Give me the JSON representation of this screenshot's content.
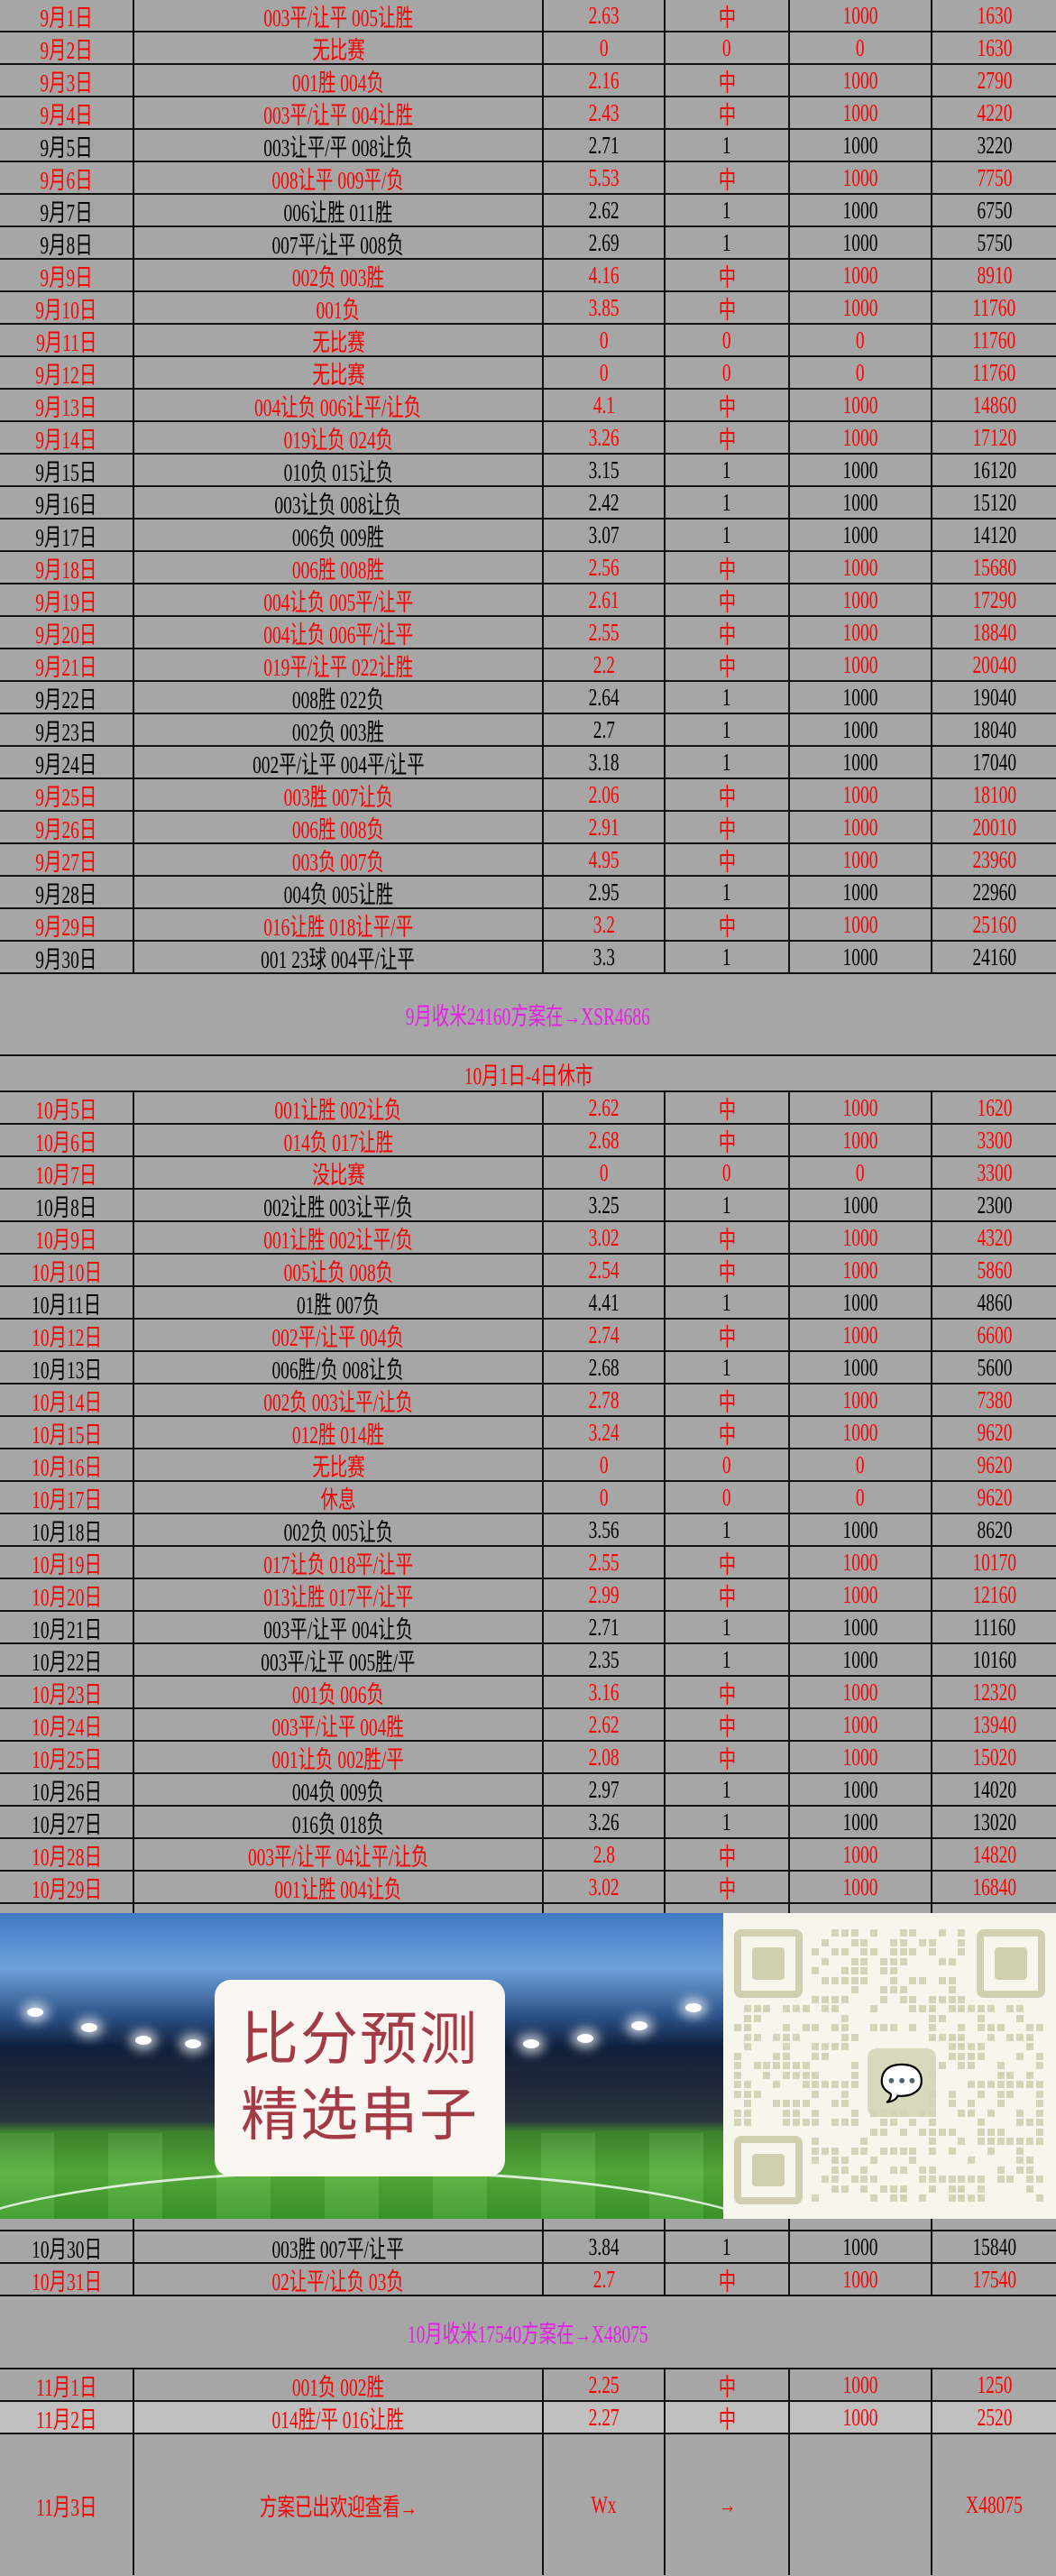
{
  "colors": {
    "red": "#ff0000",
    "black": "#000000",
    "magenta": "#e81ee8",
    "background": "#a6a6a6",
    "highlight_row": "#c0c0c0"
  },
  "september": [
    {
      "date": "9月1日",
      "picks": "003平/让平 005让胜",
      "odds": "2.63",
      "result": "中",
      "stake": "1000",
      "balance": "1630",
      "color": "red"
    },
    {
      "date": "9月2日",
      "picks": "无比赛",
      "odds": "0",
      "result": "0",
      "stake": "0",
      "balance": "1630",
      "color": "red"
    },
    {
      "date": "9月3日",
      "picks": "001胜 004负",
      "odds": "2.16",
      "result": "中",
      "stake": "1000",
      "balance": "2790",
      "color": "red"
    },
    {
      "date": "9月4日",
      "picks": "003平/让平 004让胜",
      "odds": "2.43",
      "result": "中",
      "stake": "1000",
      "balance": "4220",
      "color": "red"
    },
    {
      "date": "9月5日",
      "picks": "003让平/平 008让负",
      "odds": "2.71",
      "result": "1",
      "stake": "1000",
      "balance": "3220",
      "color": "black"
    },
    {
      "date": "9月6日",
      "picks": "008让平 009平/负",
      "odds": "5.53",
      "result": "中",
      "stake": "1000",
      "balance": "7750",
      "color": "red"
    },
    {
      "date": "9月7日",
      "picks": "006让胜 011胜",
      "odds": "2.62",
      "result": "1",
      "stake": "1000",
      "balance": "6750",
      "color": "black"
    },
    {
      "date": "9月8日",
      "picks": "007平/让平 008负",
      "odds": "2.69",
      "result": "1",
      "stake": "1000",
      "balance": "5750",
      "color": "black"
    },
    {
      "date": "9月9日",
      "picks": "002负 003胜",
      "odds": "4.16",
      "result": "中",
      "stake": "1000",
      "balance": "8910",
      "color": "red"
    },
    {
      "date": "9月10日",
      "picks": "001负",
      "odds": "3.85",
      "result": "中",
      "stake": "1000",
      "balance": "11760",
      "color": "red"
    },
    {
      "date": "9月11日",
      "picks": "无比赛",
      "odds": "0",
      "result": "0",
      "stake": "0",
      "balance": "11760",
      "color": "red"
    },
    {
      "date": "9月12日",
      "picks": "无比赛",
      "odds": "0",
      "result": "0",
      "stake": "0",
      "balance": "11760",
      "color": "red"
    },
    {
      "date": "9月13日",
      "picks": "004让负 006让平/让负",
      "odds": "4.1",
      "result": "中",
      "stake": "1000",
      "balance": "14860",
      "color": "red"
    },
    {
      "date": "9月14日",
      "picks": "019让负 024负",
      "odds": "3.26",
      "result": "中",
      "stake": "1000",
      "balance": "17120",
      "color": "red"
    },
    {
      "date": "9月15日",
      "picks": "010负 015让负",
      "odds": "3.15",
      "result": "1",
      "stake": "1000",
      "balance": "16120",
      "color": "black"
    },
    {
      "date": "9月16日",
      "picks": "003让负 008让负",
      "odds": "2.42",
      "result": "1",
      "stake": "1000",
      "balance": "15120",
      "color": "black"
    },
    {
      "date": "9月17日",
      "picks": "006负 009胜",
      "odds": "3.07",
      "result": "1",
      "stake": "1000",
      "balance": "14120",
      "color": "black"
    },
    {
      "date": "9月18日",
      "picks": "006胜 008胜",
      "odds": "2.56",
      "result": "中",
      "stake": "1000",
      "balance": "15680",
      "color": "red"
    },
    {
      "date": "9月19日",
      "picks": "004让负 005平/让平",
      "odds": "2.61",
      "result": "中",
      "stake": "1000",
      "balance": "17290",
      "color": "red"
    },
    {
      "date": "9月20日",
      "picks": "004让负 006平/让平",
      "odds": "2.55",
      "result": "中",
      "stake": "1000",
      "balance": "18840",
      "color": "red"
    },
    {
      "date": "9月21日",
      "picks": "019平/让平 022让胜",
      "odds": "2.2",
      "result": "中",
      "stake": "1000",
      "balance": "20040",
      "color": "red"
    },
    {
      "date": "9月22日",
      "picks": "008胜 022负",
      "odds": "2.64",
      "result": "1",
      "stake": "1000",
      "balance": "19040",
      "color": "black"
    },
    {
      "date": "9月23日",
      "picks": "002负 003胜",
      "odds": "2.7",
      "result": "1",
      "stake": "1000",
      "balance": "18040",
      "color": "black"
    },
    {
      "date": "9月24日",
      "picks": "002平/让平 004平/让平",
      "odds": "3.18",
      "result": "1",
      "stake": "1000",
      "balance": "17040",
      "color": "black"
    },
    {
      "date": "9月25日",
      "picks": "003胜 007让负",
      "odds": "2.06",
      "result": "中",
      "stake": "1000",
      "balance": "18100",
      "color": "red"
    },
    {
      "date": "9月26日",
      "picks": "006胜 008负",
      "odds": "2.91",
      "result": "中",
      "stake": "1000",
      "balance": "20010",
      "color": "red"
    },
    {
      "date": "9月27日",
      "picks": "003负 007负",
      "odds": "4.95",
      "result": "中",
      "stake": "1000",
      "balance": "23960",
      "color": "red"
    },
    {
      "date": "9月28日",
      "picks": "004负 005让胜",
      "odds": "2.95",
      "result": "1",
      "stake": "1000",
      "balance": "22960",
      "color": "black"
    },
    {
      "date": "9月29日",
      "picks": "016让胜 018让平/平",
      "odds": "3.2",
      "result": "中",
      "stake": "1000",
      "balance": "25160",
      "color": "red"
    },
    {
      "date": "9月30日",
      "picks": "001 23球 004平/让平",
      "odds": "3.3",
      "result": "1",
      "stake": "1000",
      "balance": "24160",
      "color": "black"
    }
  ],
  "september_summary": "9月收米24160方案在→XSR4686",
  "holiday_notice": "10月1日-4日休市",
  "october_a": [
    {
      "date": "10月5日",
      "picks": "001让胜 002让负",
      "odds": "2.62",
      "result": "中",
      "stake": "1000",
      "balance": "1620",
      "color": "red"
    },
    {
      "date": "10月6日",
      "picks": "014负 017让胜",
      "odds": "2.68",
      "result": "中",
      "stake": "1000",
      "balance": "3300",
      "color": "red"
    },
    {
      "date": "10月7日",
      "picks": "没比赛",
      "odds": "0",
      "result": "0",
      "stake": "0",
      "balance": "3300",
      "color": "red"
    },
    {
      "date": "10月8日",
      "picks": "002让胜 003让平/负",
      "odds": "3.25",
      "result": "1",
      "stake": "1000",
      "balance": "2300",
      "color": "black"
    },
    {
      "date": "10月9日",
      "picks": "001让胜 002让平/负",
      "odds": "3.02",
      "result": "中",
      "stake": "1000",
      "balance": "4320",
      "color": "red"
    },
    {
      "date": "10月10日",
      "picks": "005让负 008负",
      "odds": "2.54",
      "result": "中",
      "stake": "1000",
      "balance": "5860",
      "color": "red"
    },
    {
      "date": "10月11日",
      "picks": "01胜 007负",
      "odds": "4.41",
      "result": "1",
      "stake": "1000",
      "balance": "4860",
      "color": "black"
    },
    {
      "date": "10月12日",
      "picks": "002平/让平 004负",
      "odds": "2.74",
      "result": "中",
      "stake": "1000",
      "balance": "6600",
      "color": "red"
    },
    {
      "date": "10月13日",
      "picks": "006胜/负 008让负",
      "odds": "2.68",
      "result": "1",
      "stake": "1000",
      "balance": "5600",
      "color": "black"
    },
    {
      "date": "10月14日",
      "picks": "002负 003让平/让负",
      "odds": "2.78",
      "result": "中",
      "stake": "1000",
      "balance": "7380",
      "color": "red"
    },
    {
      "date": "10月15日",
      "picks": "012胜 014胜",
      "odds": "3.24",
      "result": "中",
      "stake": "1000",
      "balance": "9620",
      "color": "red"
    },
    {
      "date": "10月16日",
      "picks": "无比赛",
      "odds": "0",
      "result": "0",
      "stake": "0",
      "balance": "9620",
      "color": "red"
    },
    {
      "date": "10月17日",
      "picks": "休息",
      "odds": "0",
      "result": "0",
      "stake": "0",
      "balance": "9620",
      "color": "red"
    },
    {
      "date": "10月18日",
      "picks": "002负 005让负",
      "odds": "3.56",
      "result": "1",
      "stake": "1000",
      "balance": "8620",
      "color": "black"
    },
    {
      "date": "10月19日",
      "picks": "017让负 018平/让平",
      "odds": "2.55",
      "result": "中",
      "stake": "1000",
      "balance": "10170",
      "color": "red"
    },
    {
      "date": "10月20日",
      "picks": "013让胜 017平/让平",
      "odds": "2.99",
      "result": "中",
      "stake": "1000",
      "balance": "12160",
      "color": "red"
    },
    {
      "date": "10月21日",
      "picks": "003平/让平 004让负",
      "odds": "2.71",
      "result": "1",
      "stake": "1000",
      "balance": "11160",
      "color": "black"
    },
    {
      "date": "10月22日",
      "picks": "003平/让平 005胜/平",
      "odds": "2.35",
      "result": "1",
      "stake": "1000",
      "balance": "10160",
      "color": "black"
    },
    {
      "date": "10月23日",
      "picks": "001负 006负",
      "odds": "3.16",
      "result": "中",
      "stake": "1000",
      "balance": "12320",
      "color": "red"
    },
    {
      "date": "10月24日",
      "picks": "003平/让平 004胜",
      "odds": "2.62",
      "result": "中",
      "stake": "1000",
      "balance": "13940",
      "color": "red"
    },
    {
      "date": "10月25日",
      "picks": "001让负 002胜/平",
      "odds": "2.08",
      "result": "中",
      "stake": "1000",
      "balance": "15020",
      "color": "red"
    },
    {
      "date": "10月26日",
      "picks": "004负 009负",
      "odds": "2.97",
      "result": "1",
      "stake": "1000",
      "balance": "14020",
      "color": "black"
    },
    {
      "date": "10月27日",
      "picks": "016负 018负",
      "odds": "3.26",
      "result": "1",
      "stake": "1000",
      "balance": "13020",
      "color": "black"
    },
    {
      "date": "10月28日",
      "picks": "003平/让平 04让平/让负",
      "odds": "2.8",
      "result": "中",
      "stake": "1000",
      "balance": "14820",
      "color": "red"
    },
    {
      "date": "10月29日",
      "picks": "001让胜 004让负",
      "odds": "3.02",
      "result": "中",
      "stake": "1000",
      "balance": "16840",
      "color": "red"
    }
  ],
  "banner": {
    "headline_line1": "比分预测",
    "headline_line2": "精选串子",
    "qr_icon": "wechat-icon"
  },
  "october_b": [
    {
      "date": "10月30日",
      "picks": "003胜 007平/让平",
      "odds": "3.84",
      "result": "1",
      "stake": "1000",
      "balance": "15840",
      "color": "black"
    },
    {
      "date": "10月31日",
      "picks": "02让平/让负 03负",
      "odds": "2.7",
      "result": "中",
      "stake": "1000",
      "balance": "17540",
      "color": "red"
    }
  ],
  "october_summary": "10月收米17540方案在→X48075",
  "november": [
    {
      "date": "11月1日",
      "picks": "001负 002胜",
      "odds": "2.25",
      "result": "中",
      "stake": "1000",
      "balance": "1250",
      "color": "red"
    },
    {
      "date": "11月2日",
      "picks": "014胜/平 016让胜",
      "odds": "2.27",
      "result": "中",
      "stake": "1000",
      "balance": "2520",
      "color": "red",
      "highlighted": true
    }
  ],
  "final_row": {
    "date": "11月3日",
    "picks": "方案已出欢迎查看→",
    "odds": "Wx",
    "result": "→",
    "stake": "",
    "balance": "X48075",
    "color": "red"
  }
}
